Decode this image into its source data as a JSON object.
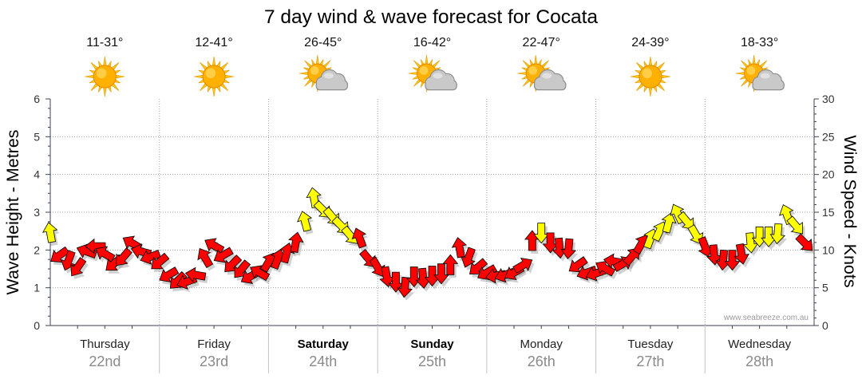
{
  "colors": {
    "wind_red": "#ff0000",
    "wind_yellow": "#ffff00",
    "arrow_outline": "#000000",
    "shadow": "#6e6e6e",
    "sun": "#ffb000",
    "sun_edge": "#e58a00",
    "sun_rays": "#ffc61a",
    "sun_ray_edge": "#e09a00",
    "sun_highlight": "#ffe680",
    "cloud": "#c9c9c9",
    "cloud_edge": "#8e8e8e",
    "cloud_highlight": "#e6e6e6"
  },
  "days": [
    {
      "name": "Thursday",
      "date": "22nd",
      "temp": "11-31°",
      "icon": "sun-icon",
      "bold": false
    },
    {
      "name": "Friday",
      "date": "23rd",
      "temp": "12-41°",
      "icon": "sun-icon",
      "bold": false
    },
    {
      "name": "Saturday",
      "date": "24th",
      "temp": "26-45°",
      "icon": "partly-cloudy-icon",
      "bold": true
    },
    {
      "name": "Sunday",
      "date": "25th",
      "temp": "16-42°",
      "icon": "partly-cloudy-icon",
      "bold": true
    },
    {
      "name": "Monday",
      "date": "26th",
      "temp": "22-47°",
      "icon": "partly-cloudy-icon",
      "bold": false
    },
    {
      "name": "Tuesday",
      "date": "27th",
      "temp": "24-39°",
      "icon": "sun-icon",
      "bold": false
    },
    {
      "name": "Wednesday",
      "date": "28th",
      "temp": "18-33°",
      "icon": "partly-cloudy-icon",
      "bold": false
    }
  ],
  "watermark": "www.seabreeze.com.au",
  "chart_data": {
    "type": "scatter",
    "title": "7 day wind & wave forecast for Cocata",
    "y_left_label": "Wave Height - Metres",
    "y_left_ticks": [
      "0",
      "1",
      "2",
      "3",
      "4",
      "5",
      "6"
    ],
    "y_left_lim": [
      0,
      6
    ],
    "y_right_label": "Wind Speed - Knots",
    "y_right_ticks": [
      "0",
      "5",
      "10",
      "15",
      "20",
      "25",
      "30"
    ],
    "y_right_lim": [
      0,
      30
    ],
    "grid": true,
    "wind": [
      {
        "day": "22nd",
        "time": "00:00",
        "knots": 12.3,
        "direction": 350,
        "color": "yellow"
      },
      {
        "day": "22nd",
        "time": "02:00",
        "knots": 9.3,
        "direction": 235,
        "color": "red"
      },
      {
        "day": "22nd",
        "time": "04:00",
        "knots": 8.6,
        "direction": 200,
        "color": "red"
      },
      {
        "day": "22nd",
        "time": "06:00",
        "knots": 7.7,
        "direction": 215,
        "color": "red"
      },
      {
        "day": "22nd",
        "time": "08:00",
        "knots": 9.8,
        "direction": 290,
        "color": "red"
      },
      {
        "day": "22nd",
        "time": "10:00",
        "knots": 10.5,
        "direction": 270,
        "color": "red"
      },
      {
        "day": "22nd",
        "time": "12:00",
        "knots": 9.5,
        "direction": 300,
        "color": "red"
      },
      {
        "day": "22nd",
        "time": "14:00",
        "knots": 8.2,
        "direction": 230,
        "color": "red"
      },
      {
        "day": "22nd",
        "time": "16:00",
        "knots": 9.0,
        "direction": 220,
        "color": "red"
      },
      {
        "day": "22nd",
        "time": "18:00",
        "knots": 10.9,
        "direction": 300,
        "color": "red"
      },
      {
        "day": "22nd",
        "time": "20:00",
        "knots": 9.8,
        "direction": 285,
        "color": "red"
      },
      {
        "day": "22nd",
        "time": "22:00",
        "knots": 9.1,
        "direction": 250,
        "color": "red"
      },
      {
        "day": "23rd",
        "time": "00:00",
        "knots": 8.4,
        "direction": 230,
        "color": "red"
      },
      {
        "day": "23rd",
        "time": "02:00",
        "knots": 6.7,
        "direction": 240,
        "color": "red"
      },
      {
        "day": "23rd",
        "time": "04:00",
        "knots": 5.9,
        "direction": 225,
        "color": "red"
      },
      {
        "day": "23rd",
        "time": "06:00",
        "knots": 5.8,
        "direction": 250,
        "color": "red"
      },
      {
        "day": "23rd",
        "time": "08:00",
        "knots": 6.7,
        "direction": 280,
        "color": "red"
      },
      {
        "day": "23rd",
        "time": "10:00",
        "knots": 9.0,
        "direction": 330,
        "color": "red"
      },
      {
        "day": "23rd",
        "time": "12:00",
        "knots": 10.6,
        "direction": 300,
        "color": "red"
      },
      {
        "day": "23rd",
        "time": "14:00",
        "knots": 9.3,
        "direction": 240,
        "color": "red"
      },
      {
        "day": "23rd",
        "time": "16:00",
        "knots": 8.1,
        "direction": 225,
        "color": "red"
      },
      {
        "day": "23rd",
        "time": "18:00",
        "knots": 7.4,
        "direction": 220,
        "color": "red"
      },
      {
        "day": "23rd",
        "time": "20:00",
        "knots": 6.5,
        "direction": 240,
        "color": "red"
      },
      {
        "day": "23rd",
        "time": "22:00",
        "knots": 7.0,
        "direction": 300,
        "color": "red"
      },
      {
        "day": "24th",
        "time": "00:00",
        "knots": 8.4,
        "direction": 30,
        "color": "red"
      },
      {
        "day": "24th",
        "time": "02:00",
        "knots": 8.8,
        "direction": 20,
        "color": "red"
      },
      {
        "day": "24th",
        "time": "04:00",
        "knots": 9.6,
        "direction": 15,
        "color": "red"
      },
      {
        "day": "24th",
        "time": "06:00",
        "knots": 11.0,
        "direction": 10,
        "color": "red"
      },
      {
        "day": "24th",
        "time": "08:00",
        "knots": 13.8,
        "direction": 345,
        "color": "yellow"
      },
      {
        "day": "24th",
        "time": "10:00",
        "knots": 16.9,
        "direction": 350,
        "color": "yellow"
      },
      {
        "day": "24th",
        "time": "12:00",
        "knots": 15.3,
        "direction": 135,
        "color": "yellow"
      },
      {
        "day": "24th",
        "time": "14:00",
        "knots": 14.4,
        "direction": 140,
        "color": "yellow"
      },
      {
        "day": "24th",
        "time": "16:00",
        "knots": 13.2,
        "direction": 135,
        "color": "yellow"
      },
      {
        "day": "24th",
        "time": "18:00",
        "knots": 11.9,
        "direction": 140,
        "color": "yellow"
      },
      {
        "day": "24th",
        "time": "20:00",
        "knots": 11.6,
        "direction": 340,
        "color": "red"
      },
      {
        "day": "24th",
        "time": "22:00",
        "knots": 8.8,
        "direction": 140,
        "color": "red"
      },
      {
        "day": "25th",
        "time": "00:00",
        "knots": 7.7,
        "direction": 150,
        "color": "red"
      },
      {
        "day": "25th",
        "time": "02:00",
        "knots": 6.5,
        "direction": 170,
        "color": "red"
      },
      {
        "day": "25th",
        "time": "04:00",
        "knots": 5.8,
        "direction": 180,
        "color": "red"
      },
      {
        "day": "25th",
        "time": "06:00",
        "knots": 5.1,
        "direction": 185,
        "color": "red"
      },
      {
        "day": "25th",
        "time": "08:00",
        "knots": 6.5,
        "direction": 180,
        "color": "red"
      },
      {
        "day": "25th",
        "time": "10:00",
        "knots": 6.3,
        "direction": 175,
        "color": "red"
      },
      {
        "day": "25th",
        "time": "12:00",
        "knots": 6.6,
        "direction": 180,
        "color": "red"
      },
      {
        "day": "25th",
        "time": "14:00",
        "knots": 6.9,
        "direction": 180,
        "color": "red"
      },
      {
        "day": "25th",
        "time": "16:00",
        "knots": 8.0,
        "direction": 0,
        "color": "red"
      },
      {
        "day": "25th",
        "time": "18:00",
        "knots": 10.3,
        "direction": 350,
        "color": "red"
      },
      {
        "day": "25th",
        "time": "20:00",
        "knots": 9.0,
        "direction": 200,
        "color": "red"
      },
      {
        "day": "25th",
        "time": "22:00",
        "knots": 7.7,
        "direction": 230,
        "color": "red"
      },
      {
        "day": "26th",
        "time": "00:00",
        "knots": 7.0,
        "direction": 240,
        "color": "red"
      },
      {
        "day": "26th",
        "time": "02:00",
        "knots": 6.6,
        "direction": 260,
        "color": "red"
      },
      {
        "day": "26th",
        "time": "04:00",
        "knots": 6.7,
        "direction": 250,
        "color": "red"
      },
      {
        "day": "26th",
        "time": "06:00",
        "knots": 7.0,
        "direction": 240,
        "color": "red"
      },
      {
        "day": "26th",
        "time": "08:00",
        "knots": 8.0,
        "direction": 60,
        "color": "red"
      },
      {
        "day": "26th",
        "time": "10:00",
        "knots": 11.2,
        "direction": 0,
        "color": "red"
      },
      {
        "day": "26th",
        "time": "12:00",
        "knots": 12.3,
        "direction": 180,
        "color": "yellow"
      },
      {
        "day": "26th",
        "time": "14:00",
        "knots": 11.0,
        "direction": 180,
        "color": "red"
      },
      {
        "day": "26th",
        "time": "16:00",
        "knots": 10.3,
        "direction": 175,
        "color": "red"
      },
      {
        "day": "26th",
        "time": "18:00",
        "knots": 10.2,
        "direction": 185,
        "color": "red"
      },
      {
        "day": "26th",
        "time": "20:00",
        "knots": 8.0,
        "direction": 235,
        "color": "red"
      },
      {
        "day": "26th",
        "time": "22:00",
        "knots": 7.0,
        "direction": 250,
        "color": "red"
      },
      {
        "day": "27th",
        "time": "00:00",
        "knots": 6.9,
        "direction": 250,
        "color": "red"
      },
      {
        "day": "27th",
        "time": "02:00",
        "knots": 7.6,
        "direction": 300,
        "color": "red"
      },
      {
        "day": "27th",
        "time": "04:00",
        "knots": 8.5,
        "direction": 280,
        "color": "red"
      },
      {
        "day": "27th",
        "time": "06:00",
        "knots": 8.2,
        "direction": 60,
        "color": "red"
      },
      {
        "day": "27th",
        "time": "08:00",
        "knots": 9.2,
        "direction": 40,
        "color": "red"
      },
      {
        "day": "27th",
        "time": "10:00",
        "knots": 10.8,
        "direction": 30,
        "color": "red"
      },
      {
        "day": "27th",
        "time": "12:00",
        "knots": 11.5,
        "direction": 20,
        "color": "yellow"
      },
      {
        "day": "27th",
        "time": "14:00",
        "knots": 12.5,
        "direction": 25,
        "color": "yellow"
      },
      {
        "day": "27th",
        "time": "16:00",
        "knots": 13.6,
        "direction": 15,
        "color": "yellow"
      },
      {
        "day": "27th",
        "time": "18:00",
        "knots": 14.8,
        "direction": 335,
        "color": "yellow"
      },
      {
        "day": "27th",
        "time": "20:00",
        "knots": 13.8,
        "direction": 140,
        "color": "yellow"
      },
      {
        "day": "27th",
        "time": "22:00",
        "knots": 12.0,
        "direction": 150,
        "color": "yellow"
      },
      {
        "day": "28th",
        "time": "00:00",
        "knots": 10.4,
        "direction": 160,
        "color": "red"
      },
      {
        "day": "28th",
        "time": "02:00",
        "knots": 9.4,
        "direction": 175,
        "color": "red"
      },
      {
        "day": "28th",
        "time": "04:00",
        "knots": 8.7,
        "direction": 185,
        "color": "red"
      },
      {
        "day": "28th",
        "time": "06:00",
        "knots": 8.7,
        "direction": 180,
        "color": "red"
      },
      {
        "day": "28th",
        "time": "08:00",
        "knots": 9.5,
        "direction": 170,
        "color": "red"
      },
      {
        "day": "28th",
        "time": "10:00",
        "knots": 11.0,
        "direction": 175,
        "color": "yellow"
      },
      {
        "day": "28th",
        "time": "12:00",
        "knots": 11.8,
        "direction": 180,
        "color": "yellow"
      },
      {
        "day": "28th",
        "time": "14:00",
        "knots": 11.8,
        "direction": 180,
        "color": "yellow"
      },
      {
        "day": "28th",
        "time": "16:00",
        "knots": 12.2,
        "direction": 185,
        "color": "yellow"
      },
      {
        "day": "28th",
        "time": "18:00",
        "knots": 14.7,
        "direction": 340,
        "color": "yellow"
      },
      {
        "day": "28th",
        "time": "20:00",
        "knots": 13.2,
        "direction": 140,
        "color": "yellow"
      },
      {
        "day": "28th",
        "time": "22:00",
        "knots": 10.9,
        "direction": 135,
        "color": "red"
      }
    ]
  }
}
